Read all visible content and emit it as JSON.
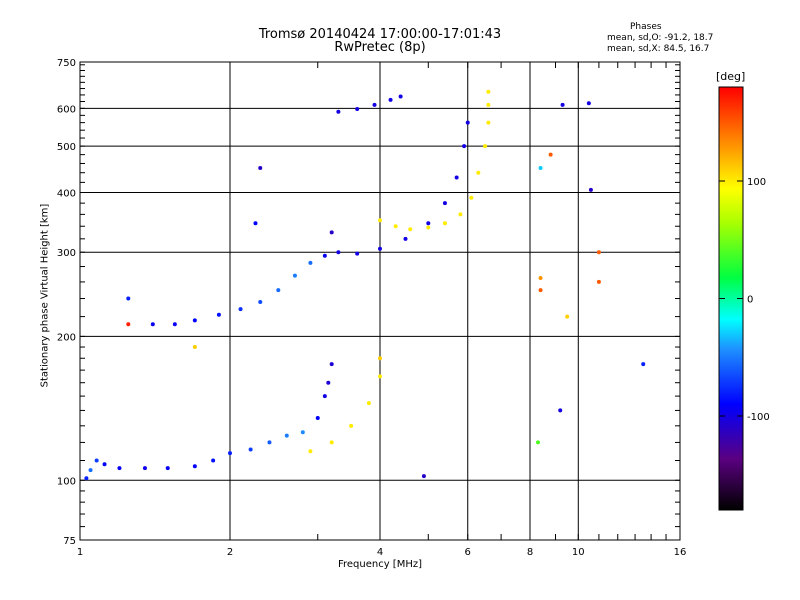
{
  "title": "Tromsø 20140424 17:00:00-17:01:43",
  "subtitle": "RwPretec (8p)",
  "legend": {
    "heading": "Phases",
    "o_mode": "mean, sd,O: -91.2, 18.7",
    "x_mode": "mean, sd,X: 84.5, 16.7"
  },
  "colors": {
    "background": "#ffffff",
    "axes": "#000000",
    "o_trace": "#1a1aff",
    "x_trace": "#e6ee00",
    "low_branch": "#1e90ff"
  },
  "chart_data": {
    "type": "scatter",
    "title": "Tromsø 20140424 17:00:00-17:01:43",
    "subtitle": "RwPretec (8p)",
    "xlabel": "Frequency [MHz]",
    "ylabel": "Stationary phase Virtual Height [km]",
    "x_scale": "log",
    "y_scale": "log",
    "xlim": [
      1,
      16
    ],
    "ylim": [
      75,
      750
    ],
    "x_ticks": [
      1,
      2,
      4,
      6,
      8,
      10,
      16
    ],
    "y_ticks": [
      75,
      100,
      200,
      300,
      400,
      500,
      600,
      750
    ],
    "grid": true,
    "colorbar": {
      "label": "[deg]",
      "range": [
        -180,
        180
      ],
      "ticks": [
        100,
        0,
        -100
      ]
    },
    "series": [
      {
        "values": [
          [
            1.03,
            101,
            -80
          ],
          [
            1.05,
            105,
            -55
          ],
          [
            1.08,
            110,
            -70
          ],
          [
            1.12,
            108,
            -90
          ],
          [
            1.2,
            106,
            -95
          ],
          [
            1.35,
            106,
            -98
          ],
          [
            1.5,
            106,
            -95
          ],
          [
            1.7,
            107,
            -92
          ],
          [
            1.85,
            110,
            -85
          ],
          [
            2.0,
            114,
            -80
          ],
          [
            2.2,
            116,
            -70
          ],
          [
            2.4,
            120,
            -60
          ],
          [
            2.6,
            124,
            -50
          ],
          [
            2.8,
            126,
            -45
          ],
          [
            3.0,
            135,
            -90
          ],
          [
            3.1,
            150,
            -100
          ],
          [
            3.15,
            160,
            -105
          ],
          [
            3.2,
            175,
            -105
          ]
        ]
      },
      {
        "values": [
          [
            1.4,
            212,
            -95
          ],
          [
            1.55,
            212,
            -95
          ],
          [
            1.7,
            216,
            -90
          ],
          [
            1.9,
            222,
            -85
          ],
          [
            2.1,
            228,
            -75
          ],
          [
            2.3,
            236,
            -65
          ],
          [
            2.5,
            250,
            -55
          ],
          [
            2.7,
            268,
            -50
          ],
          [
            2.9,
            285,
            -55
          ],
          [
            3.1,
            295,
            -95
          ],
          [
            3.2,
            330,
            -110
          ],
          [
            3.3,
            300,
            -100
          ],
          [
            3.6,
            298,
            -100
          ],
          [
            4.0,
            305,
            -100
          ],
          [
            4.5,
            320,
            -100
          ],
          [
            5.0,
            345,
            -100
          ],
          [
            5.4,
            380,
            -100
          ],
          [
            5.7,
            430,
            -100
          ],
          [
            5.9,
            500,
            -100
          ],
          [
            6.0,
            560,
            -100
          ]
        ]
      },
      {
        "values": [
          [
            3.3,
            590,
            -100
          ],
          [
            3.6,
            598,
            -100
          ],
          [
            3.9,
            610,
            -100
          ],
          [
            4.2,
            625,
            -100
          ],
          [
            4.4,
            635,
            -100
          ]
        ]
      },
      {
        "values": [
          [
            2.9,
            115,
            100
          ],
          [
            3.2,
            120,
            100
          ],
          [
            3.5,
            130,
            100
          ],
          [
            3.8,
            145,
            100
          ],
          [
            4.0,
            165,
            100
          ],
          [
            4.0,
            180,
            110
          ]
        ]
      },
      {
        "values": [
          [
            4.0,
            350,
            100
          ],
          [
            4.3,
            340,
            100
          ],
          [
            4.6,
            335,
            100
          ],
          [
            5.0,
            338,
            100
          ],
          [
            5.4,
            345,
            100
          ],
          [
            5.8,
            360,
            100
          ],
          [
            6.1,
            390,
            100
          ],
          [
            6.3,
            440,
            100
          ],
          [
            6.5,
            500,
            100
          ],
          [
            6.6,
            560,
            100
          ],
          [
            6.6,
            610,
            100
          ],
          [
            6.6,
            650,
            100
          ]
        ]
      },
      {
        "values": [
          [
            1.25,
            240,
            -80
          ],
          [
            1.25,
            212,
            170
          ],
          [
            1.7,
            190,
            110
          ],
          [
            2.3,
            450,
            -110
          ],
          [
            2.25,
            345,
            -90
          ],
          [
            4.9,
            102,
            -110
          ],
          [
            8.4,
            450,
            -30
          ],
          [
            8.4,
            265,
            130
          ],
          [
            8.4,
            250,
            150
          ],
          [
            9.3,
            610,
            -100
          ],
          [
            9.5,
            220,
            110
          ],
          [
            10.5,
            615,
            -100
          ],
          [
            10.6,
            405,
            -110
          ],
          [
            11,
            300,
            150
          ],
          [
            11,
            260,
            150
          ],
          [
            13.5,
            175,
            -80
          ],
          [
            9.2,
            140,
            -100
          ],
          [
            8.8,
            480,
            150
          ],
          [
            8.3,
            120,
            40
          ]
        ]
      }
    ]
  }
}
